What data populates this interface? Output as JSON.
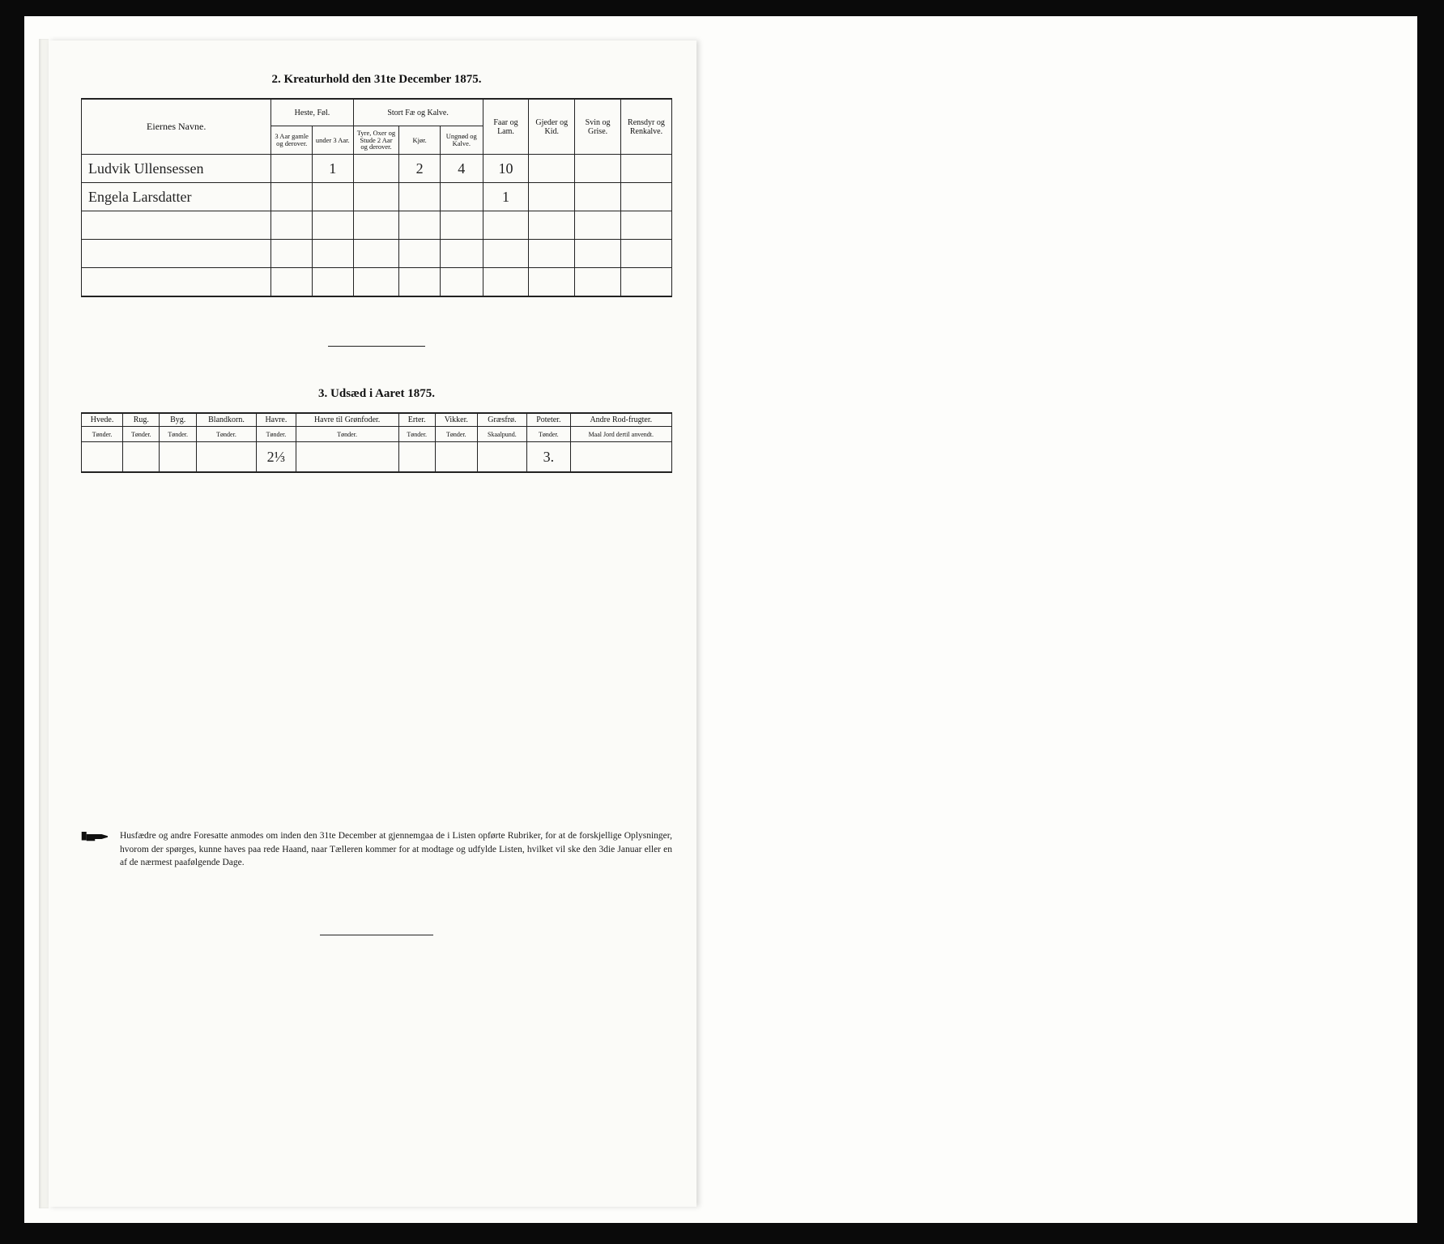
{
  "section2": {
    "title": "2.  Kreaturhold den 31te December 1875.",
    "headers": {
      "name": "Eiernes Navne.",
      "group1": "Heste, Føl.",
      "group2": "Stort Fæ og Kalve.",
      "faar": "Faar og Lam.",
      "gjeder": "Gjeder og Kid.",
      "svin": "Svin og Grise.",
      "rensdyr": "Rensdyr og Renkalve.",
      "sub": {
        "h1": "3 Aar gamle og derover.",
        "h2": "under 3 Aar.",
        "s1": "Tyre, Oxer og Stude 2 Aar og derover.",
        "s2": "Kjør.",
        "s3": "Ungnød og Kalve."
      }
    },
    "rows": [
      {
        "name": "Ludvik Ullensessen",
        "h1": "",
        "h2": "1",
        "s1": "",
        "s2": "2",
        "s3": "4",
        "faar": "10",
        "gjeder": "",
        "svin": "",
        "rensdyr": ""
      },
      {
        "name": "Engela Larsdatter",
        "h1": "",
        "h2": "",
        "s1": "",
        "s2": "",
        "s3": "",
        "faar": "1",
        "gjeder": "",
        "svin": "",
        "rensdyr": ""
      },
      {
        "name": "",
        "h1": "",
        "h2": "",
        "s1": "",
        "s2": "",
        "s3": "",
        "faar": "",
        "gjeder": "",
        "svin": "",
        "rensdyr": ""
      },
      {
        "name": "",
        "h1": "",
        "h2": "",
        "s1": "",
        "s2": "",
        "s3": "",
        "faar": "",
        "gjeder": "",
        "svin": "",
        "rensdyr": ""
      },
      {
        "name": "",
        "h1": "",
        "h2": "",
        "s1": "",
        "s2": "",
        "s3": "",
        "faar": "",
        "gjeder": "",
        "svin": "",
        "rensdyr": ""
      }
    ]
  },
  "section3": {
    "title": "3.  Udsæd i Aaret 1875.",
    "columns": [
      {
        "label": "Hvede.",
        "unit": "Tønder."
      },
      {
        "label": "Rug.",
        "unit": "Tønder."
      },
      {
        "label": "Byg.",
        "unit": "Tønder."
      },
      {
        "label": "Blandkorn.",
        "unit": "Tønder."
      },
      {
        "label": "Havre.",
        "unit": "Tønder."
      },
      {
        "label": "Havre til Grønfoder.",
        "unit": "Tønder."
      },
      {
        "label": "Erter.",
        "unit": "Tønder."
      },
      {
        "label": "Vikker.",
        "unit": "Tønder."
      },
      {
        "label": "Græsfrø.",
        "unit": "Skaalpund."
      },
      {
        "label": "Poteter.",
        "unit": "Tønder."
      },
      {
        "label": "Andre Rod-frugter.",
        "unit": "Maal Jord dertil anvendt."
      }
    ],
    "row": [
      "",
      "",
      "",
      "",
      "2⅓",
      "",
      "",
      "",
      "",
      "3.",
      ""
    ]
  },
  "footnote": "Husfædre og andre Foresatte anmodes om inden den 31te December at gjennemgaa de i Listen opførte Rubriker, for at de forskjellige Oplysninger, hvorom der spørges, kunne haves paa rede Haand, naar Tælleren kommer for at modtage og udfylde Listen, hvilket vil ske den 3die Januar eller en af de nærmest paafølgende Dage."
}
